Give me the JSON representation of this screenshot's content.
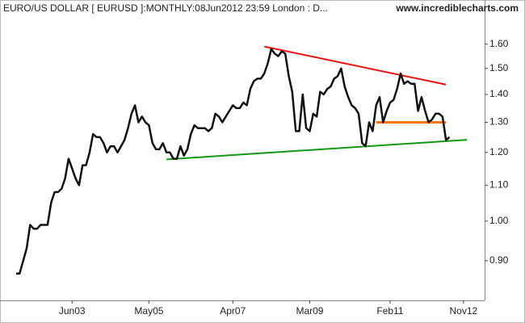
{
  "chart_data": {
    "type": "line",
    "title": "EURO/US DOLLAR [ EURUSD ]:MONTHLY:08Jun2012 23:59 London : D...",
    "source": "www.incrediblecharts.com",
    "log_y": true,
    "ylim": [
      0.81,
      1.78
    ],
    "yticks": [
      {
        "value": 0.9,
        "label": "0.90"
      },
      {
        "value": 1.0,
        "label": "1.00"
      },
      {
        "value": 1.1,
        "label": "1.10"
      },
      {
        "value": 1.2,
        "label": "1.20"
      },
      {
        "value": 1.3,
        "label": "1.30"
      },
      {
        "value": 1.4,
        "label": "1.40"
      },
      {
        "value": 1.5,
        "label": "1.50"
      },
      {
        "value": 1.6,
        "label": "1.60"
      }
    ],
    "categories": [
      null,
      null,
      null,
      null,
      null,
      null,
      null,
      null,
      null,
      null,
      null,
      null,
      null,
      null,
      null,
      null,
      "Jun03",
      null,
      null,
      null,
      null,
      null,
      null,
      null,
      null,
      null,
      null,
      null,
      null,
      null,
      null,
      null,
      null,
      null,
      null,
      null,
      null,
      null,
      "May05",
      null,
      null,
      null,
      null,
      null,
      null,
      null,
      null,
      null,
      null,
      null,
      null,
      null,
      null,
      null,
      null,
      null,
      null,
      null,
      null,
      null,
      null,
      null,
      "Apr07",
      null,
      null,
      null,
      null,
      null,
      null,
      null,
      null,
      null,
      null,
      null,
      null,
      null,
      null,
      null,
      null,
      null,
      null,
      null,
      null,
      null,
      "Mar09",
      null,
      null,
      null,
      null,
      null,
      null,
      null,
      null,
      null,
      null,
      null,
      null,
      null,
      null,
      null,
      null,
      null,
      null,
      null,
      null,
      null,
      null,
      "Feb11",
      null,
      null,
      null,
      null,
      null,
      null,
      null,
      null,
      null,
      null,
      null,
      null,
      null,
      null,
      null,
      null,
      null,
      null,
      null,
      null,
      "Nov12",
      null
    ],
    "series": [
      {
        "name": "EURUSD",
        "color": "#111111",
        "values": [
          0.87,
          0.87,
          0.9,
          0.93,
          0.99,
          0.98,
          0.98,
          0.99,
          0.99,
          0.99,
          1.05,
          1.08,
          1.08,
          1.09,
          1.12,
          1.18,
          1.15,
          1.12,
          1.1,
          1.16,
          1.16,
          1.2,
          1.26,
          1.25,
          1.25,
          1.23,
          1.2,
          1.22,
          1.22,
          1.2,
          1.22,
          1.24,
          1.28,
          1.33,
          1.36,
          1.3,
          1.32,
          1.3,
          1.29,
          1.23,
          1.21,
          1.21,
          1.23,
          1.2,
          1.2,
          1.18,
          1.18,
          1.22,
          1.19,
          1.21,
          1.26,
          1.29,
          1.28,
          1.28,
          1.28,
          1.27,
          1.28,
          1.33,
          1.32,
          1.3,
          1.32,
          1.34,
          1.36,
          1.35,
          1.35,
          1.37,
          1.36,
          1.42,
          1.45,
          1.46,
          1.46,
          1.48,
          1.52,
          1.58,
          1.56,
          1.55,
          1.57,
          1.56,
          1.47,
          1.41,
          1.27,
          1.27,
          1.4,
          1.28,
          1.27,
          1.33,
          1.32,
          1.41,
          1.4,
          1.42,
          1.43,
          1.46,
          1.47,
          1.5,
          1.43,
          1.39,
          1.36,
          1.35,
          1.33,
          1.23,
          1.22,
          1.3,
          1.27,
          1.36,
          1.39,
          1.3,
          1.34,
          1.37,
          1.38,
          1.42,
          1.48,
          1.44,
          1.45,
          1.44,
          1.44,
          1.34,
          1.39,
          1.34,
          1.3,
          1.31,
          1.33,
          1.33,
          1.32,
          1.24,
          1.25,
          null,
          null,
          null,
          null,
          null
        ]
      }
    ],
    "trendlines": [
      {
        "color": "#ee1111",
        "from": 71,
        "to": 123,
        "values": [
          1.59,
          1.437
        ]
      },
      {
        "color": "#119911",
        "from": 43,
        "to": 129,
        "values": [
          1.178,
          1.241
        ]
      },
      {
        "color": "#ff7700",
        "from": 103,
        "to": 123,
        "values": [
          1.3,
          1.3
        ]
      }
    ]
  }
}
